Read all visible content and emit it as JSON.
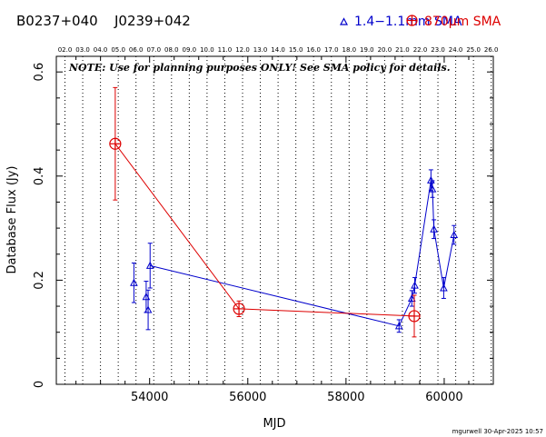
{
  "chart_data": {
    "type": "scatter",
    "sources": [
      "B0237+040",
      "J0239+042"
    ],
    "xlabel": "MJD",
    "ylabel": "Database Flux (Jy)",
    "xlim": [
      52100,
      61000
    ],
    "ylim": [
      0,
      0.63
    ],
    "x_ticks": [
      "54000",
      "56000",
      "58000",
      "60000"
    ],
    "y_ticks": [
      "0",
      "0.2",
      "0.4",
      "0.6"
    ],
    "top_axis_ticks": [
      "02.0",
      "03.0",
      "04.0",
      "05.0",
      "06.0",
      "07.0",
      "08.0",
      "09.0",
      "10.0",
      "11.0",
      "12.0",
      "13.0",
      "14.0",
      "15.0",
      "16.0",
      "17.0",
      "18.0",
      "19.0",
      "20.0",
      "21.0",
      "22.0",
      "23.0",
      "24.0",
      "25.0",
      "26.0"
    ],
    "note": "NOTE: Use for planning purposes ONLY!  See SMA policy for details.",
    "footer": "mgurwell 30-Apr-2025 10:57",
    "grid": "vertical dotted lines at each top-axis year",
    "series": [
      {
        "name": "1.4−1.1mm SMA",
        "marker": "triangle",
        "color": "#0000cc",
        "points": [
          {
            "x": 53680,
            "y": 0.195,
            "err": 0.038
          },
          {
            "x": 53930,
            "y": 0.168,
            "err": 0.03
          },
          {
            "x": 53970,
            "y": 0.143,
            "err": 0.038
          },
          {
            "x": 54010,
            "y": 0.228,
            "err": 0.043
          },
          {
            "x": 59080,
            "y": 0.112,
            "err": 0.012
          },
          {
            "x": 59340,
            "y": 0.165,
            "err": 0.015
          },
          {
            "x": 59400,
            "y": 0.19,
            "err": 0.015
          },
          {
            "x": 59730,
            "y": 0.392,
            "err": 0.02
          },
          {
            "x": 59760,
            "y": 0.375,
            "err": 0.016
          },
          {
            "x": 59790,
            "y": 0.298,
            "err": 0.018
          },
          {
            "x": 59990,
            "y": 0.185,
            "err": 0.02
          },
          {
            "x": 60200,
            "y": 0.287,
            "err": 0.018
          }
        ],
        "connected": [
          [
            54010,
            0.228
          ],
          [
            59080,
            0.112
          ],
          [
            59340,
            0.165
          ],
          [
            59400,
            0.19
          ],
          [
            59730,
            0.392
          ],
          [
            59760,
            0.375
          ],
          [
            59790,
            0.298
          ],
          [
            59990,
            0.185
          ],
          [
            60200,
            0.287
          ]
        ]
      },
      {
        "name": "870μm SMA",
        "marker": "circle-plus",
        "color": "#dd0000",
        "points": [
          {
            "x": 53300,
            "y": 0.462,
            "err": 0.108
          },
          {
            "x": 55820,
            "y": 0.145,
            "err": 0.015
          },
          {
            "x": 59390,
            "y": 0.131,
            "err": 0.04
          }
        ],
        "connected": [
          [
            53300,
            0.462
          ],
          [
            55820,
            0.145
          ],
          [
            59390,
            0.131
          ]
        ]
      }
    ]
  }
}
